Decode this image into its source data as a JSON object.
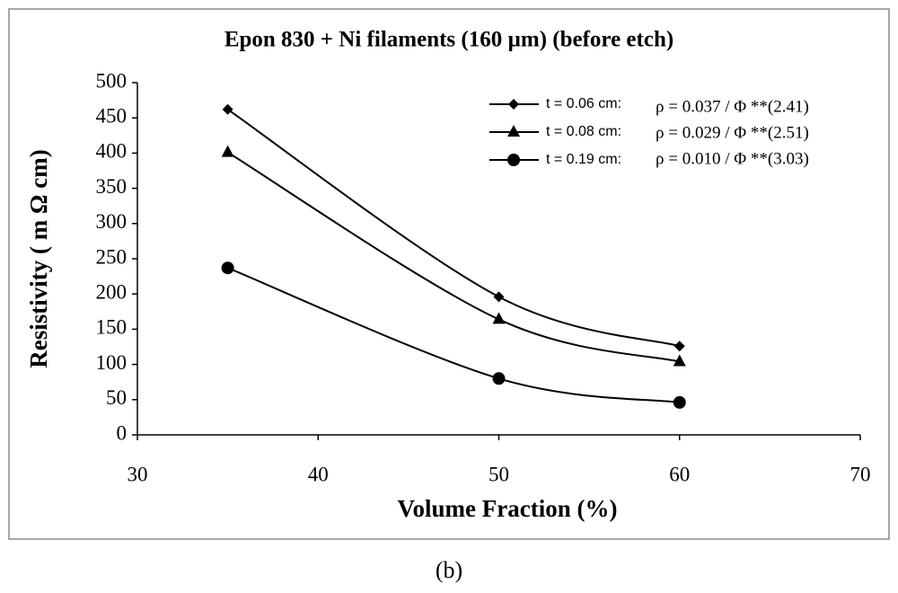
{
  "chart_data": {
    "type": "line",
    "title": "Epon 830 + Ni filaments (160 µm) (before etch)",
    "x_label": "Volume Fraction (%)",
    "y_label": "Resistivity ( m Ω cm)",
    "caption": "(b)",
    "x": [
      35,
      50,
      60
    ],
    "series": [
      {
        "name": "t = 0.06 cm:",
        "color": "#000000",
        "marker": "diamond",
        "values": [
          462,
          196,
          126
        ]
      },
      {
        "name": "t = 0.08 cm:",
        "color": "#000000",
        "marker": "triangle",
        "values": [
          401,
          164,
          104
        ]
      },
      {
        "name": "t = 0.19 cm:",
        "color": "#000000",
        "marker": "circle",
        "values": [
          237,
          80,
          46
        ]
      }
    ],
    "annotations": [
      "ρ = 0.037 / Φ **(2.41)",
      "ρ = 0.029 / Φ **(2.51)",
      "ρ = 0.010 / Φ **(3.03)"
    ],
    "xlim": [
      30,
      70
    ],
    "xticks": [
      30,
      40,
      50,
      60,
      70
    ],
    "ylim": [
      0,
      500
    ],
    "yticks": [
      0,
      50,
      100,
      150,
      200,
      250,
      300,
      350,
      400,
      450,
      500
    ],
    "grid": false,
    "legend": "upper right"
  }
}
